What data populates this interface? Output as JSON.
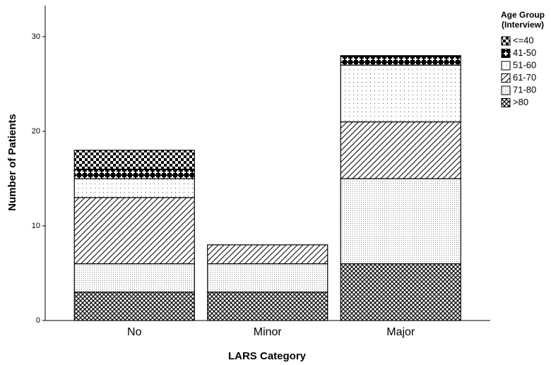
{
  "chart_data": {
    "type": "stacked_bar",
    "x_label": "LARS Category",
    "y_label": "Number of Patients",
    "legend_title": [
      "Age Group",
      "(Interview)"
    ],
    "categories": [
      "No",
      "Minor",
      "Major"
    ],
    "series": [
      {
        "name": "<=40",
        "values": [
          2,
          0,
          0
        ]
      },
      {
        "name": "41-50",
        "values": [
          1,
          0,
          1
        ]
      },
      {
        "name": "51-60",
        "values": [
          2,
          0,
          6
        ]
      },
      {
        "name": "61-70",
        "values": [
          7,
          2,
          6
        ]
      },
      {
        "name": "71-80",
        "values": [
          3,
          3,
          9
        ]
      },
      {
        "name": ">80",
        "values": [
          3,
          3,
          6
        ]
      }
    ],
    "ylim": [
      0,
      33
    ],
    "yticks": [
      0,
      10,
      20,
      30
    ],
    "legend": "top-right"
  }
}
